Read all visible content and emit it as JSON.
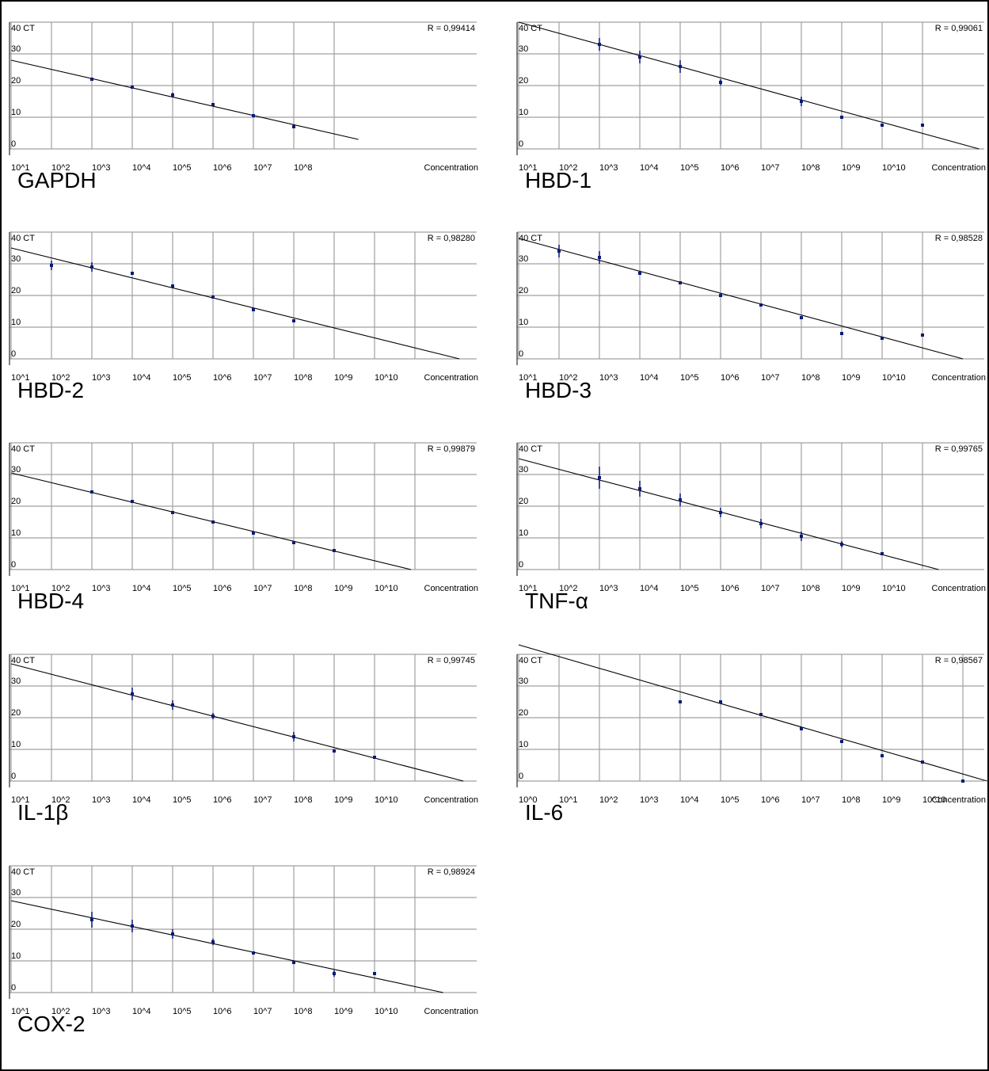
{
  "figure": {
    "colors": {
      "grid": "#a0a0a0",
      "line": "#000000",
      "marker": "#0a1a78",
      "text": "#000000",
      "background": "#ffffff"
    }
  },
  "chart_data": [
    {
      "type": "scatter",
      "title": "GAPDH",
      "ylabel": "40 CT",
      "xlabel": "Concentration",
      "x_ticks": [
        "10^1",
        "10^2",
        "10^3",
        "10^4",
        "10^5",
        "10^6",
        "10^7",
        "10^8"
      ],
      "x_scale": "log10",
      "x_range": [
        1,
        9.6
      ],
      "y_ticks": [
        0,
        10,
        20,
        30,
        40
      ],
      "y_range": [
        0,
        40
      ],
      "correlation": "R = 0,99414",
      "grid": true,
      "fit_line": {
        "x": [
          1,
          9.6
        ],
        "y": [
          28,
          3
        ]
      },
      "points": [
        {
          "x": 3,
          "y": 22,
          "err": 1
        },
        {
          "x": 4,
          "y": 19.5,
          "err": 1
        },
        {
          "x": 5,
          "y": 17,
          "err": 1.5
        },
        {
          "x": 6,
          "y": 14,
          "err": 1
        },
        {
          "x": 7,
          "y": 10.5,
          "err": 1
        },
        {
          "x": 8,
          "y": 7,
          "err": 1
        }
      ]
    },
    {
      "type": "scatter",
      "title": "HBD-1",
      "ylabel": "40 CT",
      "xlabel": "Concentration",
      "x_ticks": [
        "10^1",
        "10^2",
        "10^3",
        "10^4",
        "10^5",
        "10^6",
        "10^7",
        "10^8",
        "10^9",
        "10^10"
      ],
      "x_scale": "log10",
      "x_range": [
        1,
        11.6
      ],
      "y_ticks": [
        0,
        10,
        20,
        30,
        40
      ],
      "y_range": [
        0,
        40
      ],
      "correlation": "R = 0,99061",
      "grid": true,
      "fit_line": {
        "x": [
          1,
          12.4
        ],
        "y": [
          40,
          0
        ]
      },
      "points": [
        {
          "x": 3,
          "y": 33,
          "err": 4
        },
        {
          "x": 4,
          "y": 29,
          "err": 4
        },
        {
          "x": 5,
          "y": 26,
          "err": 4
        },
        {
          "x": 6,
          "y": 21,
          "err": 2
        },
        {
          "x": 8,
          "y": 15,
          "err": 3
        },
        {
          "x": 9,
          "y": 10,
          "err": 1
        },
        {
          "x": 10,
          "y": 7.5,
          "err": 1
        },
        {
          "x": 11,
          "y": 7.5,
          "err": 0
        }
      ]
    },
    {
      "type": "scatter",
      "title": "HBD-2",
      "ylabel": "40 CT",
      "xlabel": "Concentration",
      "x_ticks": [
        "10^1",
        "10^2",
        "10^3",
        "10^4",
        "10^5",
        "10^6",
        "10^7",
        "10^8",
        "10^9",
        "10^10"
      ],
      "x_scale": "log10",
      "x_range": [
        1,
        11.6
      ],
      "y_ticks": [
        0,
        10,
        20,
        30,
        40
      ],
      "y_range": [
        0,
        40
      ],
      "correlation": "R = 0,98280",
      "grid": true,
      "fit_line": {
        "x": [
          1,
          12.1
        ],
        "y": [
          35,
          0
        ]
      },
      "points": [
        {
          "x": 2,
          "y": 29.5,
          "err": 3
        },
        {
          "x": 3,
          "y": 29,
          "err": 3
        },
        {
          "x": 4,
          "y": 27,
          "err": 1
        },
        {
          "x": 5,
          "y": 23,
          "err": 1
        },
        {
          "x": 6,
          "y": 19.5,
          "err": 0
        },
        {
          "x": 7,
          "y": 15.5,
          "err": 0
        },
        {
          "x": 8,
          "y": 12,
          "err": 0
        }
      ]
    },
    {
      "type": "scatter",
      "title": "HBD-3",
      "ylabel": "40 CT",
      "xlabel": "Concentration",
      "x_ticks": [
        "10^1",
        "10^2",
        "10^3",
        "10^4",
        "10^5",
        "10^6",
        "10^7",
        "10^8",
        "10^9",
        "10^10"
      ],
      "x_scale": "log10",
      "x_range": [
        1,
        11.6
      ],
      "y_ticks": [
        0,
        10,
        20,
        30,
        40
      ],
      "y_range": [
        0,
        40
      ],
      "correlation": "R = 0,98528",
      "grid": true,
      "fit_line": {
        "x": [
          1,
          12.0
        ],
        "y": [
          38,
          0
        ]
      },
      "points": [
        {
          "x": 2,
          "y": 34,
          "err": 4
        },
        {
          "x": 3,
          "y": 32,
          "err": 4
        },
        {
          "x": 4,
          "y": 27,
          "err": 1
        },
        {
          "x": 5,
          "y": 24,
          "err": 1
        },
        {
          "x": 6,
          "y": 20,
          "err": 1
        },
        {
          "x": 7,
          "y": 17,
          "err": 0
        },
        {
          "x": 8,
          "y": 13,
          "err": 1
        },
        {
          "x": 9,
          "y": 8,
          "err": 0
        },
        {
          "x": 10,
          "y": 6.5,
          "err": 0
        },
        {
          "x": 11,
          "y": 7.5,
          "err": 0
        }
      ]
    },
    {
      "type": "scatter",
      "title": "HBD-4",
      "ylabel": "40 CT",
      "xlabel": "Concentration",
      "x_ticks": [
        "10^1",
        "10^2",
        "10^3",
        "10^4",
        "10^5",
        "10^6",
        "10^7",
        "10^8",
        "10^9",
        "10^10"
      ],
      "x_scale": "log10",
      "x_range": [
        1,
        11.6
      ],
      "y_ticks": [
        0,
        10,
        20,
        30,
        40
      ],
      "y_range": [
        0,
        40
      ],
      "correlation": "R = 0,99879",
      "grid": true,
      "fit_line": {
        "x": [
          1,
          10.9
        ],
        "y": [
          30.5,
          0
        ]
      },
      "points": [
        {
          "x": 3,
          "y": 24.5,
          "err": 0
        },
        {
          "x": 4,
          "y": 21.5,
          "err": 0
        },
        {
          "x": 5,
          "y": 18,
          "err": 0
        },
        {
          "x": 6,
          "y": 15,
          "err": 0
        },
        {
          "x": 7,
          "y": 11.5,
          "err": 0
        },
        {
          "x": 8,
          "y": 8.5,
          "err": 0
        },
        {
          "x": 9,
          "y": 6,
          "err": 0
        }
      ]
    },
    {
      "type": "scatter",
      "title": "TNF-α",
      "ylabel": "40 CT",
      "xlabel": "Concentration",
      "x_ticks": [
        "10^1",
        "10^2",
        "10^3",
        "10^4",
        "10^5",
        "10^6",
        "10^7",
        "10^8",
        "10^9",
        "10^10"
      ],
      "x_scale": "log10",
      "x_range": [
        1,
        11.6
      ],
      "y_ticks": [
        0,
        10,
        20,
        30,
        40
      ],
      "y_range": [
        0,
        40
      ],
      "correlation": "R = 0,99765",
      "grid": true,
      "fit_line": {
        "x": [
          1,
          11.4
        ],
        "y": [
          35,
          0
        ]
      },
      "points": [
        {
          "x": 3,
          "y": 29,
          "err": 7
        },
        {
          "x": 4,
          "y": 25.5,
          "err": 5
        },
        {
          "x": 5,
          "y": 22,
          "err": 4
        },
        {
          "x": 6,
          "y": 18,
          "err": 3
        },
        {
          "x": 7,
          "y": 14.5,
          "err": 3
        },
        {
          "x": 8,
          "y": 10.5,
          "err": 3
        },
        {
          "x": 9,
          "y": 8,
          "err": 2
        },
        {
          "x": 10,
          "y": 5,
          "err": 0
        }
      ]
    },
    {
      "type": "scatter",
      "title": "IL-1β",
      "ylabel": "40 CT",
      "xlabel": "Concentration",
      "x_ticks": [
        "10^1",
        "10^2",
        "10^3",
        "10^4",
        "10^5",
        "10^6",
        "10^7",
        "10^8",
        "10^9",
        "10^10"
      ],
      "x_scale": "log10",
      "x_range": [
        1,
        11.6
      ],
      "y_ticks": [
        0,
        10,
        20,
        30,
        40
      ],
      "y_range": [
        0,
        40
      ],
      "correlation": "R = 0,99745",
      "grid": true,
      "fit_line": {
        "x": [
          1,
          12.2
        ],
        "y": [
          37,
          0
        ]
      },
      "points": [
        {
          "x": 4,
          "y": 27.5,
          "err": 4
        },
        {
          "x": 5,
          "y": 24,
          "err": 3
        },
        {
          "x": 6,
          "y": 20.5,
          "err": 2
        },
        {
          "x": 8,
          "y": 14,
          "err": 3
        },
        {
          "x": 9,
          "y": 9.5,
          "err": 1
        },
        {
          "x": 10,
          "y": 7.5,
          "err": 0
        }
      ]
    },
    {
      "type": "scatter",
      "title": "IL-6",
      "ylabel": "40 CT",
      "xlabel": "Concentration",
      "x_ticks": [
        "10^0",
        "10^1",
        "10^2",
        "10^3",
        "10^4",
        "10^5",
        "10^6",
        "10^7",
        "10^8",
        "10^9",
        "10^10"
      ],
      "x_scale": "log10",
      "x_range": [
        0,
        11.5
      ],
      "y_ticks": [
        0,
        10,
        20,
        30,
        40
      ],
      "y_range": [
        0,
        40
      ],
      "correlation": "R = 0,98567",
      "grid": true,
      "fit_line": {
        "x": [
          0,
          11.6
        ],
        "y": [
          43,
          0
        ]
      },
      "points": [
        {
          "x": 4,
          "y": 25,
          "err": 0
        },
        {
          "x": 5,
          "y": 25,
          "err": 0
        },
        {
          "x": 6,
          "y": 21,
          "err": 0
        },
        {
          "x": 7,
          "y": 16.5,
          "err": 0
        },
        {
          "x": 8,
          "y": 12.5,
          "err": 0
        },
        {
          "x": 9,
          "y": 8,
          "err": 0
        },
        {
          "x": 10,
          "y": 6,
          "err": 0
        },
        {
          "x": 11,
          "y": 0,
          "err": 0
        }
      ]
    },
    {
      "type": "scatter",
      "title": "COX-2",
      "ylabel": "40 CT",
      "xlabel": "Concentration",
      "x_ticks": [
        "10^1",
        "10^2",
        "10^3",
        "10^4",
        "10^5",
        "10^6",
        "10^7",
        "10^8",
        "10^9",
        "10^10"
      ],
      "x_scale": "log10",
      "x_range": [
        1,
        11.6
      ],
      "y_ticks": [
        0,
        10,
        20,
        30,
        40
      ],
      "y_range": [
        0,
        40
      ],
      "correlation": "R = 0,98924",
      "grid": true,
      "fit_line": {
        "x": [
          1,
          11.7
        ],
        "y": [
          29,
          0
        ]
      },
      "points": [
        {
          "x": 3,
          "y": 23,
          "err": 5
        },
        {
          "x": 4,
          "y": 21,
          "err": 4
        },
        {
          "x": 5,
          "y": 18.5,
          "err": 3
        },
        {
          "x": 6,
          "y": 16,
          "err": 2
        },
        {
          "x": 7,
          "y": 12.5,
          "err": 1
        },
        {
          "x": 8,
          "y": 9.5,
          "err": 1
        },
        {
          "x": 9,
          "y": 6,
          "err": 2
        },
        {
          "x": 10,
          "y": 6,
          "err": 0
        }
      ]
    }
  ]
}
